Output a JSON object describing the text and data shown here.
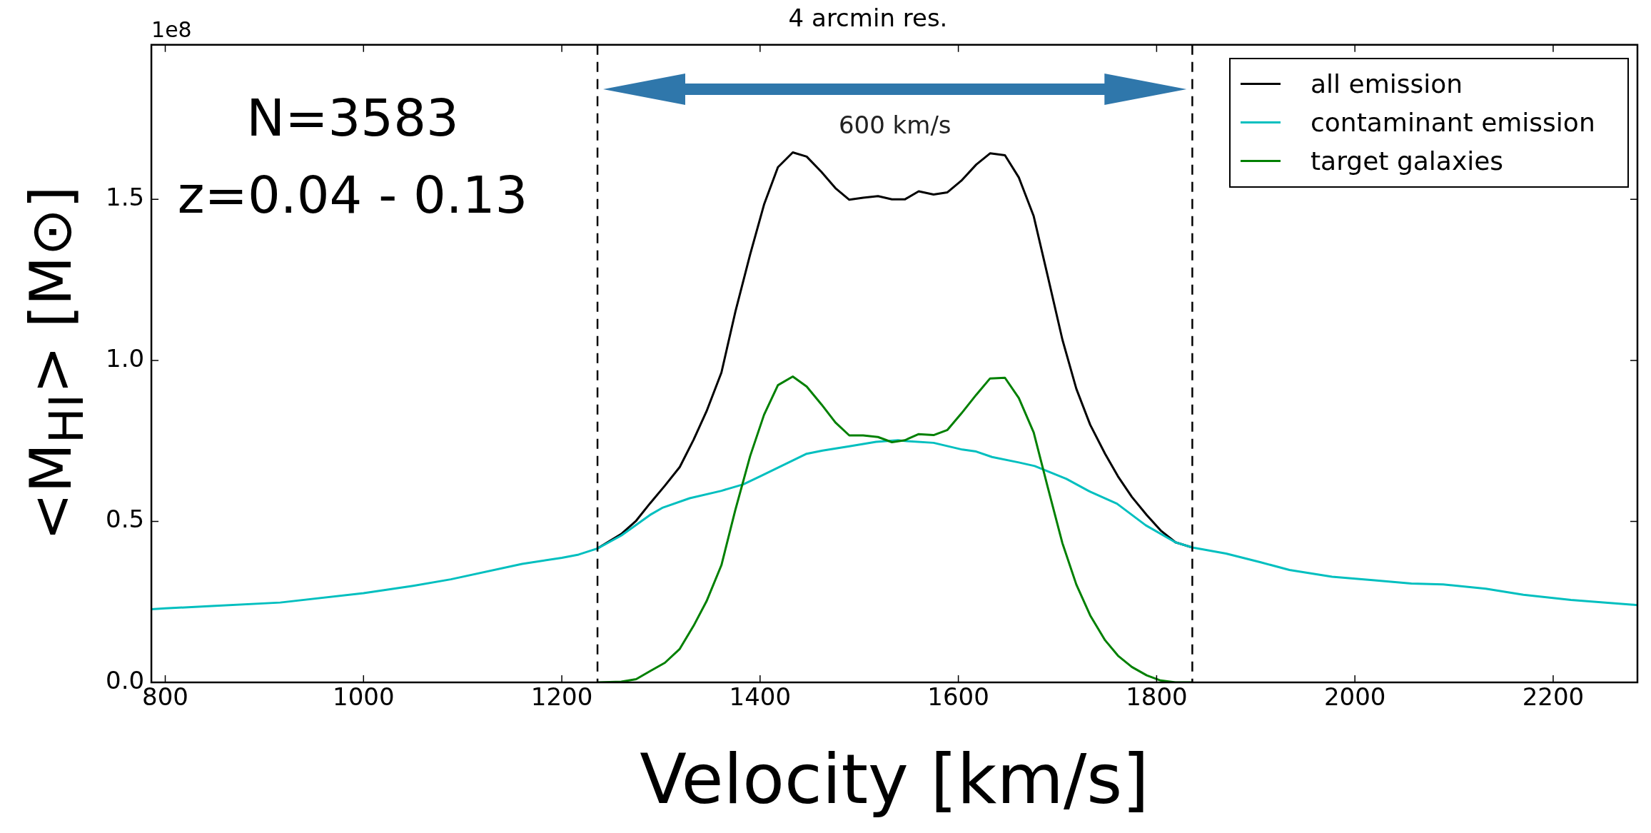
{
  "chart_data": {
    "type": "line",
    "title": "4 arcmin res.",
    "xlabel": "Velocity [km/s]",
    "ylabel": "<M$_{HI}$> [M⊙]",
    "annotations": [
      "1e8",
      "N=3583",
      "z=0.04 - 0.13",
      "600 km/s"
    ],
    "xlim": [
      786,
      2285
    ],
    "xticks": [
      800,
      1000,
      1200,
      1400,
      1600,
      1800,
      2000,
      2200
    ],
    "ylim": [
      0,
      1.98
    ],
    "yticks": [
      {
        "value": 0,
        "label": "0.0"
      },
      0.5,
      {
        "value": 1,
        "label": "1.0"
      },
      1.5
    ],
    "grid": false,
    "legend": "top right",
    "marker": "none",
    "line_style": "solid",
    "ref_lines": [
      {
        "axis": "x",
        "value": 1236,
        "color": "#000000",
        "line_style": "dashed"
      },
      {
        "axis": "x",
        "value": 1836,
        "color": "#000000",
        "line_style": "dashed"
      }
    ],
    "series": [
      {
        "name": "all emission",
        "color": "#000000",
        "x": [
          1236,
          1260,
          1275,
          1289,
          1304,
          1319,
          1333,
          1346,
          1361,
          1375,
          1390,
          1404,
          1418,
          1433,
          1447,
          1462,
          1476,
          1490,
          1504,
          1519,
          1533,
          1546,
          1560,
          1575,
          1589,
          1603,
          1618,
          1632,
          1647,
          1661,
          1676,
          1690,
          1705,
          1719,
          1733,
          1748,
          1761,
          1775,
          1790,
          1804,
          1819,
          1836
        ],
        "values": [
          0.416,
          0.461,
          0.502,
          0.556,
          0.611,
          0.669,
          0.754,
          0.842,
          0.962,
          1.15,
          1.329,
          1.484,
          1.6,
          1.646,
          1.633,
          1.585,
          1.535,
          1.499,
          1.505,
          1.51,
          1.5,
          1.5,
          1.525,
          1.515,
          1.522,
          1.558,
          1.608,
          1.643,
          1.637,
          1.568,
          1.448,
          1.264,
          1.064,
          0.912,
          0.8,
          0.71,
          0.64,
          0.576,
          0.52,
          0.472,
          0.435,
          0.419
        ]
      },
      {
        "name": "contaminant emission",
        "color": "#00bfbf",
        "x": [
          786,
          800,
          847,
          916,
          1000,
          1050,
          1088,
          1160,
          1200,
          1217,
          1236,
          1260,
          1289,
          1302,
          1329,
          1361,
          1383,
          1400,
          1447,
          1463,
          1490,
          1517,
          1539,
          1548,
          1575,
          1604,
          1618,
          1634,
          1661,
          1677,
          1709,
          1733,
          1760,
          1789,
          1819,
          1836,
          1870,
          1905,
          1934,
          1977,
          2020,
          2057,
          2089,
          2132,
          2170,
          2218,
          2285
        ],
        "values": [
          0.227,
          0.23,
          0.237,
          0.248,
          0.277,
          0.3,
          0.32,
          0.368,
          0.387,
          0.397,
          0.416,
          0.456,
          0.52,
          0.543,
          0.572,
          0.595,
          0.615,
          0.64,
          0.71,
          0.72,
          0.733,
          0.747,
          0.752,
          0.749,
          0.744,
          0.723,
          0.717,
          0.7,
          0.683,
          0.672,
          0.632,
          0.592,
          0.555,
          0.488,
          0.435,
          0.419,
          0.4,
          0.373,
          0.349,
          0.328,
          0.317,
          0.307,
          0.304,
          0.291,
          0.272,
          0.256,
          0.24
        ]
      },
      {
        "name": "target galaxies",
        "color": "#008000",
        "x": [
          1236,
          1260,
          1275,
          1289,
          1304,
          1319,
          1333,
          1346,
          1361,
          1375,
          1390,
          1404,
          1418,
          1433,
          1447,
          1462,
          1476,
          1490,
          1504,
          1519,
          1533,
          1546,
          1560,
          1575,
          1589,
          1603,
          1618,
          1632,
          1647,
          1661,
          1676,
          1690,
          1705,
          1719,
          1733,
          1748,
          1761,
          1775,
          1790,
          1804,
          1819,
          1836
        ],
        "values": [
          0,
          0.002,
          0.01,
          0.035,
          0.061,
          0.104,
          0.176,
          0.252,
          0.364,
          0.535,
          0.703,
          0.831,
          0.923,
          0.95,
          0.919,
          0.863,
          0.807,
          0.767,
          0.767,
          0.762,
          0.746,
          0.752,
          0.771,
          0.768,
          0.784,
          0.835,
          0.893,
          0.944,
          0.946,
          0.883,
          0.776,
          0.608,
          0.432,
          0.304,
          0.208,
          0.131,
          0.083,
          0.048,
          0.022,
          0.006,
          0,
          0
        ]
      }
    ]
  }
}
